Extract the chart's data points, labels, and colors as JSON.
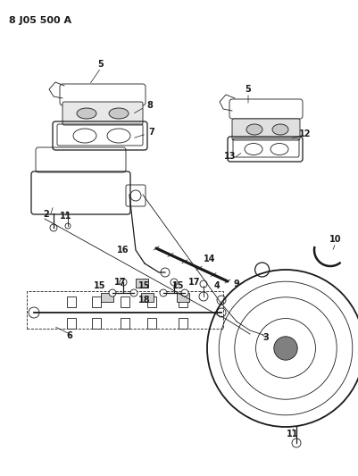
{
  "title": "8 J05 500 A",
  "bg_color": "#ffffff",
  "line_color": "#1a1a1a",
  "title_fontsize": 8,
  "label_fontsize": 7,
  "figsize": [
    4.02,
    5.33
  ],
  "dpi": 100
}
